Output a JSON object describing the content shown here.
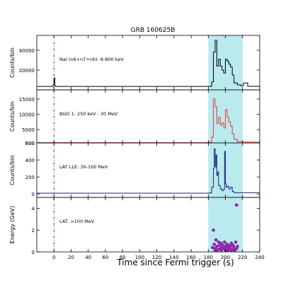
{
  "figure": {
    "title": "GRB 160625B",
    "xlabel": "Time since Fermi trigger (s)",
    "x_ticks": [
      0,
      20,
      40,
      60,
      80,
      100,
      120,
      140,
      160,
      180,
      200,
      220,
      240
    ],
    "xlim": [
      -20,
      240
    ],
    "highlight_interval": [
      180,
      220
    ],
    "highlight_color": "#b8eaee",
    "trigger_time": 0,
    "trigger_line_color": "#2e7d32"
  },
  "chart_data": [
    {
      "type": "line",
      "panel_label": "NaI (n6+n7+nb): 8-800 keV",
      "ylabel": "Counts/bin",
      "ylim": [
        0,
        55000
      ],
      "y_ticks": [
        20000,
        40000
      ],
      "color": "#000000",
      "x": [
        -20,
        -2,
        -1,
        0,
        1,
        2,
        10,
        100,
        180,
        184,
        186,
        188,
        190,
        192,
        194,
        196,
        198,
        200,
        202,
        204,
        206,
        208,
        210,
        214,
        218,
        221,
        226,
        240
      ],
      "y": [
        3500,
        3500,
        5000,
        12000,
        4000,
        3500,
        3500,
        3500,
        3600,
        8000,
        38000,
        50000,
        24000,
        31000,
        24000,
        20000,
        17000,
        31000,
        29000,
        26000,
        23000,
        15000,
        7000,
        5000,
        4200,
        7000,
        3600,
        3500
      ]
    },
    {
      "type": "line",
      "panel_label": "BGO 1: 250 keV - 30 MeV",
      "ylabel": "Counts/bin",
      "ylim": [
        600,
        18000
      ],
      "y_ticks": [
        600,
        5000,
        10000,
        15000
      ],
      "color": "#e53935",
      "x": [
        -20,
        100,
        180,
        184,
        186,
        188,
        190,
        192,
        194,
        196,
        198,
        200,
        202,
        204,
        206,
        208,
        210,
        214,
        220,
        240
      ],
      "y": [
        700,
        700,
        800,
        2500,
        15000,
        12500,
        7000,
        9000,
        6500,
        7200,
        5500,
        11500,
        9000,
        7500,
        6000,
        3500,
        1800,
        1000,
        900,
        700
      ]
    },
    {
      "type": "line",
      "panel_label": "LAT LLE: 30-100 MeV",
      "ylabel": "Counts/bin",
      "ylim": [
        -40,
        600
      ],
      "y_ticks": [
        0,
        200,
        400,
        600
      ],
      "color": "#1a237e",
      "x": [
        -20,
        100,
        182,
        184,
        186,
        187,
        188,
        189,
        190,
        191,
        192,
        194,
        196,
        198,
        199,
        200,
        201,
        202,
        204,
        206,
        208,
        210,
        240
      ],
      "y": [
        10,
        10,
        15,
        80,
        300,
        530,
        320,
        460,
        220,
        260,
        100,
        60,
        40,
        60,
        500,
        120,
        80,
        90,
        60,
        80,
        30,
        15,
        10
      ]
    },
    {
      "type": "scatter",
      "panel_label": "LAT: >100 MeV",
      "ylabel": "Energy (GeV)",
      "ylim": [
        0,
        5
      ],
      "y_ticks": [
        0,
        2,
        4
      ],
      "color": "#8e24aa",
      "x": [
        185,
        187,
        188,
        189,
        190,
        191,
        192,
        193,
        194,
        195,
        196,
        197,
        198,
        199,
        200,
        201,
        202,
        203,
        204,
        205,
        206,
        207,
        208,
        209,
        210,
        212,
        213,
        214,
        186,
        190,
        195,
        200,
        203,
        207,
        211,
        188,
        213
      ],
      "y": [
        0.4,
        0.7,
        0.3,
        1.1,
        0.5,
        0.2,
        0.9,
        0.6,
        0.3,
        0.8,
        0.4,
        0.6,
        0.3,
        0.9,
        0.5,
        0.2,
        0.7,
        0.4,
        0.6,
        0.3,
        0.5,
        0.8,
        0.2,
        0.6,
        0.4,
        0.9,
        0.3,
        0.5,
        2.0,
        0.15,
        0.15,
        0.15,
        0.15,
        0.15,
        0.15,
        0.15,
        4.3
      ]
    }
  ]
}
